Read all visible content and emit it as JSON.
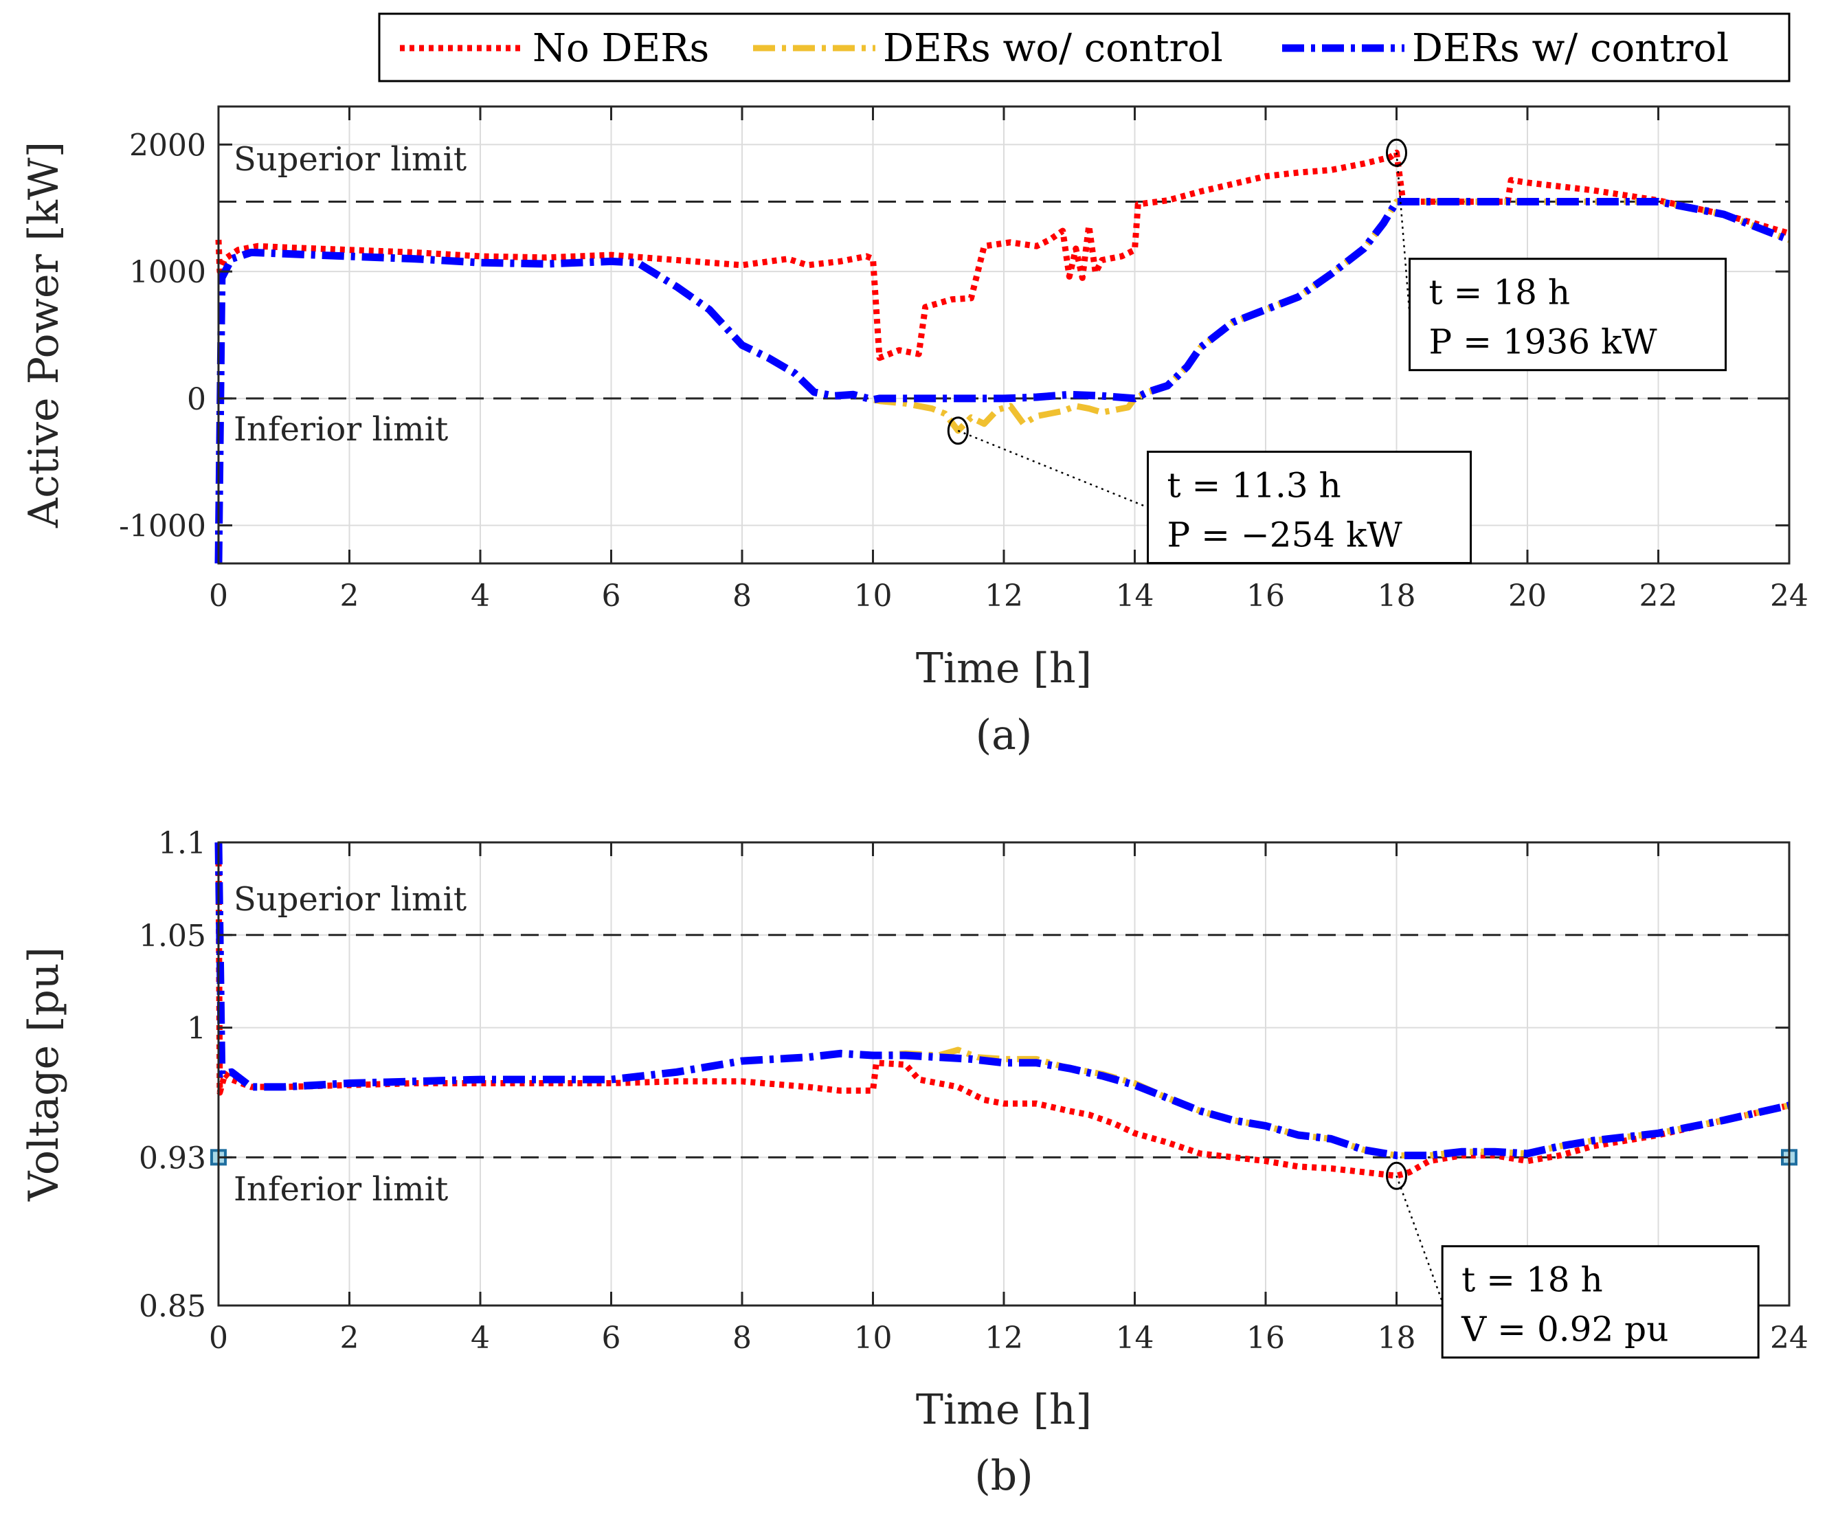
{
  "colors": {
    "no_ders": "#ff0000",
    "ders_wo": "#f0c030",
    "ders_w": "#0000ff",
    "limit": "#262626"
  },
  "legend": [
    "No DERs",
    "DERs wo/ control",
    "DERs w/ control"
  ],
  "chart_data": [
    {
      "type": "line",
      "panel_label": "(a)",
      "xlabel": "Time [h]",
      "ylabel": "Active Power [kW]",
      "xlim": [
        0,
        24
      ],
      "ylim": [
        -1300,
        2300
      ],
      "xticks": [
        "0",
        "2",
        "4",
        "6",
        "8",
        "10",
        "12",
        "14",
        "16",
        "18",
        "20",
        "22",
        "24"
      ],
      "yticks": [
        {
          "v": -1000,
          "label": "-1000"
        },
        {
          "v": 0,
          "label": "0"
        },
        {
          "v": 1000,
          "label": "1000"
        },
        {
          "v": 2000,
          "label": "2000"
        }
      ],
      "limits": [
        {
          "name": "Superior limit",
          "value": 1550
        },
        {
          "name": "Inferior limit",
          "value": 0
        }
      ],
      "series": [
        {
          "name": "No DERs",
          "x": [
            0,
            0.02,
            0.1,
            0.3,
            0.6,
            1,
            2,
            3,
            4,
            5,
            6,
            7,
            8,
            8.7,
            9,
            9.5,
            9.9,
            10,
            10.1,
            10.4,
            10.7,
            10.8,
            11.2,
            11.5,
            11.7,
            12.1,
            12.5,
            12.7,
            12.9,
            13.0,
            13.1,
            13.2,
            13.3,
            13.4,
            13.5,
            13.8,
            14.0,
            14.05,
            14.5,
            15,
            15.5,
            16,
            16.5,
            17,
            17.5,
            17.9,
            18,
            18.1,
            18.5,
            19,
            19.7,
            19.75,
            20,
            21,
            22,
            23,
            24
          ],
          "y": [
            1250,
            1000,
            1100,
            1170,
            1200,
            1190,
            1170,
            1150,
            1120,
            1110,
            1130,
            1090,
            1050,
            1100,
            1050,
            1080,
            1120,
            1100,
            320,
            380,
            350,
            720,
            780,
            790,
            1200,
            1230,
            1200,
            1250,
            1320,
            960,
            1180,
            950,
            1360,
            990,
            1090,
            1120,
            1170,
            1530,
            1560,
            1630,
            1690,
            1750,
            1780,
            1800,
            1850,
            1900,
            1936,
            1550,
            1550,
            1550,
            1550,
            1720,
            1700,
            1640,
            1560,
            1450,
            1300
          ]
        },
        {
          "name": "DERs wo/ control",
          "x": [
            0,
            0.05,
            0.2,
            0.5,
            1,
            2,
            3,
            4,
            5,
            6,
            6.4,
            7,
            7.5,
            8,
            8.4,
            8.8,
            9.1,
            9.4,
            9.7,
            10,
            10.1,
            10.5,
            10.9,
            11.1,
            11.3,
            11.5,
            11.7,
            11.9,
            12.1,
            12.3,
            12.5,
            12.7,
            12.9,
            13.1,
            13.3,
            13.5,
            13.7,
            13.9,
            14.0,
            14.2,
            14.5,
            14.8,
            15,
            15.5,
            16,
            16.5,
            17,
            17.5,
            17.8,
            18,
            18.5,
            19,
            20,
            21,
            22,
            23,
            24
          ],
          "y": [
            -1300,
            950,
            1100,
            1150,
            1140,
            1120,
            1100,
            1070,
            1060,
            1080,
            1070,
            880,
            700,
            420,
            320,
            200,
            50,
            20,
            30,
            -10,
            -20,
            -40,
            -80,
            -120,
            -254,
            -150,
            -200,
            -90,
            -60,
            -200,
            -140,
            -120,
            -100,
            -60,
            -80,
            -110,
            -90,
            -70,
            0,
            50,
            100,
            250,
            400,
            600,
            700,
            800,
            980,
            1180,
            1380,
            1550,
            1550,
            1550,
            1550,
            1550,
            1550,
            1450,
            1250
          ]
        },
        {
          "name": "DERs w/ control",
          "x": [
            0,
            0.05,
            0.2,
            0.5,
            1,
            2,
            3,
            4,
            5,
            6,
            6.4,
            7,
            7.5,
            8,
            8.4,
            8.8,
            9.1,
            9.4,
            9.7,
            10,
            10.1,
            10.5,
            11,
            11.5,
            12,
            12.5,
            13,
            13.5,
            14,
            14.2,
            14.5,
            14.8,
            15,
            15.5,
            16,
            16.5,
            17,
            17.5,
            17.8,
            18,
            18.5,
            19,
            20,
            21,
            22,
            23,
            24
          ],
          "y": [
            -1300,
            950,
            1100,
            1150,
            1140,
            1120,
            1100,
            1070,
            1060,
            1080,
            1070,
            880,
            700,
            420,
            320,
            200,
            50,
            20,
            30,
            -10,
            0,
            0,
            0,
            0,
            0,
            10,
            30,
            20,
            0,
            50,
            100,
            250,
            400,
            600,
            700,
            800,
            980,
            1180,
            1380,
            1550,
            1550,
            1550,
            1550,
            1550,
            1550,
            1450,
            1250
          ]
        }
      ],
      "annotations": [
        {
          "at_x": 18,
          "at_y": 1936,
          "t_label": "t = 18 h",
          "v_label": "P = 1936 kW",
          "box_x": 18.2,
          "box_y": 1100
        },
        {
          "at_x": 11.3,
          "at_y": -254,
          "t_label": "t = 11.3 h",
          "v_label": "P = −254 kW",
          "box_x": 14.2,
          "box_y": -420
        }
      ]
    },
    {
      "type": "line",
      "panel_label": "(b)",
      "xlabel": "Time [h]",
      "ylabel": "Voltage [pu]",
      "xlim": [
        0,
        24
      ],
      "ylim": [
        0.85,
        1.1
      ],
      "xticks": [
        "0",
        "2",
        "4",
        "6",
        "8",
        "10",
        "12",
        "14",
        "16",
        "18",
        "20",
        "22",
        "24"
      ],
      "yticks": [
        {
          "v": 0.85,
          "label": "0.85"
        },
        {
          "v": 0.93,
          "label": "0.93"
        },
        {
          "v": 1.0,
          "label": "1"
        },
        {
          "v": 1.05,
          "label": "1.05"
        },
        {
          "v": 1.1,
          "label": "1.1"
        }
      ],
      "limits": [
        {
          "name": "Superior limit",
          "value": 1.05
        },
        {
          "name": "Inferior limit",
          "value": 0.93
        }
      ],
      "series": [
        {
          "name": "No DERs",
          "x": [
            0,
            0.02,
            0.1,
            0.2,
            0.5,
            1,
            2,
            3,
            4,
            5,
            6,
            7,
            8,
            9,
            9.5,
            10,
            10.05,
            10.5,
            10.7,
            11,
            11.3,
            11.7,
            12,
            12.5,
            13,
            13.3,
            13.7,
            14,
            14.5,
            15,
            15.5,
            16,
            16.5,
            17,
            17.5,
            18,
            18.2,
            18.5,
            19,
            19.5,
            20,
            20.5,
            21,
            22,
            23,
            24
          ],
          "y": [
            1.1,
            0.965,
            0.975,
            0.972,
            0.968,
            0.968,
            0.969,
            0.97,
            0.97,
            0.97,
            0.97,
            0.971,
            0.971,
            0.968,
            0.966,
            0.966,
            0.981,
            0.98,
            0.972,
            0.97,
            0.968,
            0.961,
            0.959,
            0.959,
            0.955,
            0.953,
            0.948,
            0.943,
            0.938,
            0.932,
            0.93,
            0.928,
            0.925,
            0.924,
            0.922,
            0.92,
            0.922,
            0.928,
            0.931,
            0.931,
            0.928,
            0.931,
            0.936,
            0.942,
            0.95,
            0.958
          ]
        },
        {
          "name": "DERs wo/ control",
          "x": [
            0,
            0.05,
            0.2,
            0.5,
            1,
            2,
            3,
            4,
            5,
            6,
            7,
            8,
            9,
            9.5,
            10,
            10.5,
            11,
            11.3,
            11.6,
            12,
            12.5,
            13,
            13.5,
            14,
            14.5,
            15,
            15.5,
            16,
            16.5,
            17,
            17.5,
            18,
            18.5,
            19,
            19.5,
            20,
            20.5,
            21,
            22,
            23,
            24
          ],
          "y": [
            1.1,
            0.975,
            0.976,
            0.968,
            0.968,
            0.97,
            0.971,
            0.972,
            0.972,
            0.972,
            0.976,
            0.982,
            0.984,
            0.986,
            0.985,
            0.986,
            0.985,
            0.988,
            0.984,
            0.983,
            0.983,
            0.978,
            0.975,
            0.97,
            0.962,
            0.955,
            0.95,
            0.947,
            0.942,
            0.94,
            0.934,
            0.931,
            0.931,
            0.933,
            0.933,
            0.932,
            0.936,
            0.939,
            0.943,
            0.95,
            0.958
          ]
        },
        {
          "name": "DERs w/ control",
          "x": [
            0,
            0.05,
            0.2,
            0.5,
            1,
            2,
            3,
            4,
            5,
            6,
            7,
            8,
            9,
            9.5,
            10,
            10.5,
            11,
            11.5,
            12,
            12.5,
            13,
            13.5,
            14,
            14.5,
            15,
            15.5,
            16,
            16.5,
            17,
            17.5,
            18,
            18.5,
            19,
            19.5,
            20,
            20.5,
            21,
            22,
            23,
            24
          ],
          "y": [
            1.1,
            0.975,
            0.976,
            0.968,
            0.968,
            0.97,
            0.971,
            0.972,
            0.972,
            0.972,
            0.976,
            0.982,
            0.984,
            0.986,
            0.985,
            0.985,
            0.984,
            0.983,
            0.981,
            0.981,
            0.978,
            0.974,
            0.969,
            0.962,
            0.955,
            0.95,
            0.947,
            0.942,
            0.94,
            0.934,
            0.931,
            0.931,
            0.933,
            0.933,
            0.932,
            0.936,
            0.939,
            0.943,
            0.95,
            0.958
          ]
        }
      ],
      "annotations": [
        {
          "at_x": 18,
          "at_y": 0.92,
          "t_label": "t = 18 h",
          "v_label": "V = 0.92 pu",
          "box_x": 18.7,
          "box_y": 0.882
        }
      ]
    }
  ]
}
